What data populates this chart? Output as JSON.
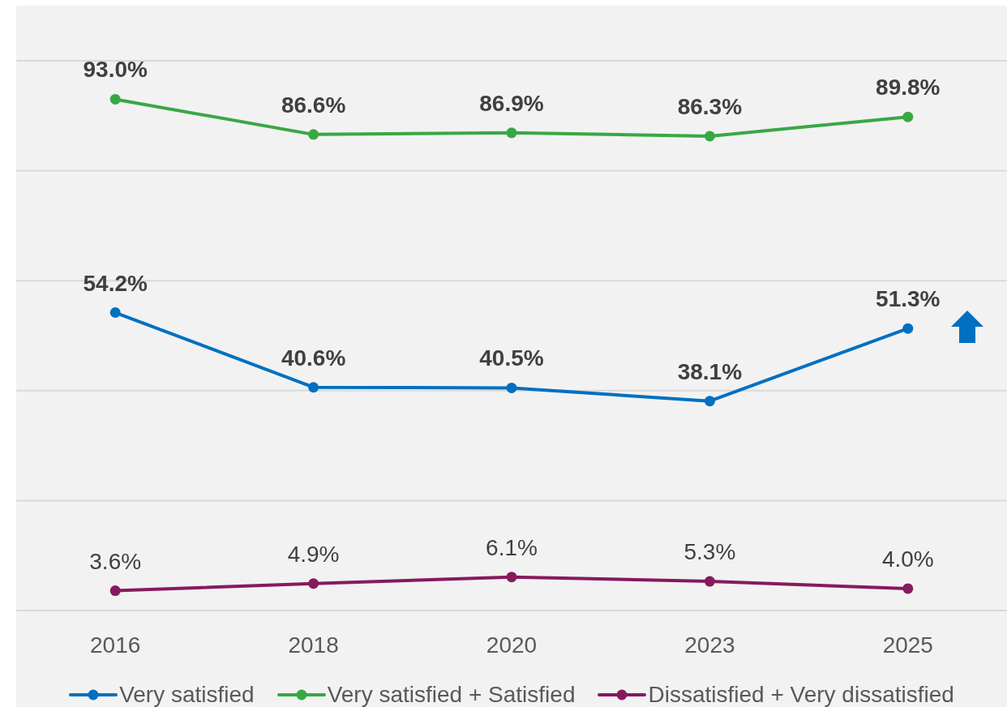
{
  "chart_data": {
    "type": "line",
    "categories": [
      "2016",
      "2018",
      "2020",
      "2023",
      "2025"
    ],
    "series": [
      {
        "name": "Very satisfied",
        "color": "#0070c0",
        "values": [
          54.2,
          40.6,
          40.5,
          38.1,
          51.3
        ],
        "value_labels": [
          "54.2%",
          "40.6%",
          "40.5%",
          "38.1%",
          "51.3%"
        ]
      },
      {
        "name": "Very satisfied + Satisfied",
        "color": "#38a844",
        "values": [
          93.0,
          86.6,
          86.9,
          86.3,
          89.8
        ],
        "value_labels": [
          "93.0%",
          "86.6%",
          "86.9%",
          "86.3%",
          "89.8%"
        ]
      },
      {
        "name": "Dissatisfied + Very dissatisfied",
        "color": "#861a5e",
        "values": [
          3.6,
          4.9,
          6.1,
          5.3,
          4.0
        ],
        "value_labels": [
          "3.6%",
          "4.9%",
          "6.1%",
          "5.3%",
          "4.0%"
        ]
      }
    ],
    "ylim": [
      0,
      100
    ],
    "yticks": [
      {
        "value": 0,
        "label": null
      },
      {
        "value": 20,
        "label": null
      },
      {
        "value": 40,
        "label": null
      },
      {
        "value": 60,
        "label": null
      },
      {
        "value": 80,
        "label": null
      },
      {
        "value": 100,
        "label": null
      }
    ],
    "tick_labels": "x",
    "grid": "y",
    "legend": "bottom",
    "marker": "circle"
  }
}
